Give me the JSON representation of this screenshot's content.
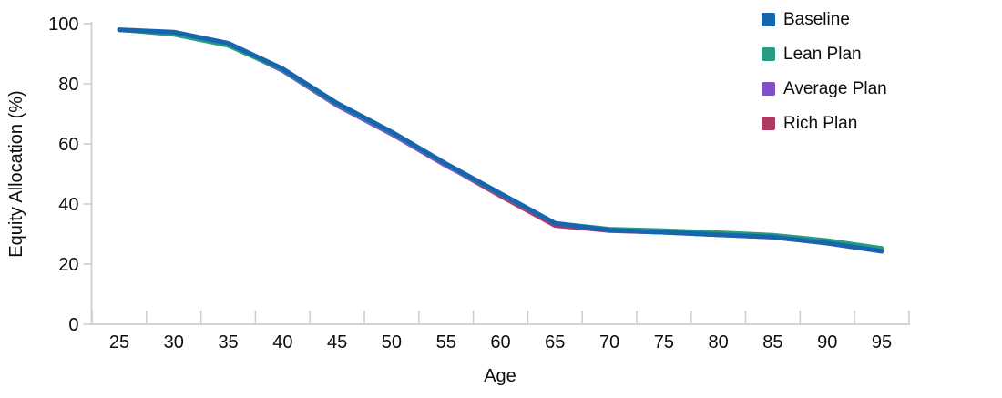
{
  "chart_data": {
    "type": "line",
    "title": "",
    "xlabel": "Age",
    "ylabel": "Equity Allocation (%)",
    "x": [
      25,
      30,
      35,
      40,
      45,
      50,
      55,
      60,
      65,
      70,
      75,
      80,
      85,
      90,
      95
    ],
    "x_tick_labels": [
      "25",
      "30",
      "35",
      "40",
      "45",
      "50",
      "55",
      "60",
      "65",
      "70",
      "75",
      "80",
      "85",
      "90",
      "95"
    ],
    "y_ticks": [
      0,
      20,
      40,
      60,
      80,
      100
    ],
    "y_tick_labels": [
      "0",
      "20",
      "40",
      "60",
      "80",
      "100"
    ],
    "ylim": [
      0,
      100
    ],
    "grid": false,
    "legend_position": "top-right",
    "axis_color": "#cdd5da",
    "text_color": "#0d0d0d",
    "series": [
      {
        "name": "Baseline",
        "color": "#1566ae",
        "values": [
          98.0,
          97.2,
          93.5,
          85.0,
          73.5,
          64.0,
          53.4,
          43.5,
          33.6,
          31.3,
          30.6,
          29.8,
          29.0,
          27.0,
          24.3
        ]
      },
      {
        "name": "Lean Plan",
        "color": "#279c81",
        "values": [
          98.0,
          96.4,
          92.7,
          84.6,
          73.2,
          63.7,
          53.2,
          43.3,
          33.6,
          31.7,
          31.2,
          30.5,
          29.7,
          27.9,
          25.3
        ]
      },
      {
        "name": "Average Plan",
        "color": "#7e52c5",
        "values": [
          97.9,
          96.8,
          93.1,
          84.3,
          72.7,
          63.2,
          52.7,
          43.2,
          33.5,
          31.2,
          30.5,
          29.7,
          28.9,
          26.9,
          24.2
        ]
      },
      {
        "name": "Rich Plan",
        "color": "#ae3a63",
        "values": [
          97.9,
          96.9,
          93.2,
          84.5,
          72.9,
          63.4,
          52.9,
          42.6,
          32.8,
          31.1,
          30.5,
          29.7,
          28.9,
          26.9,
          24.2
        ]
      }
    ]
  }
}
